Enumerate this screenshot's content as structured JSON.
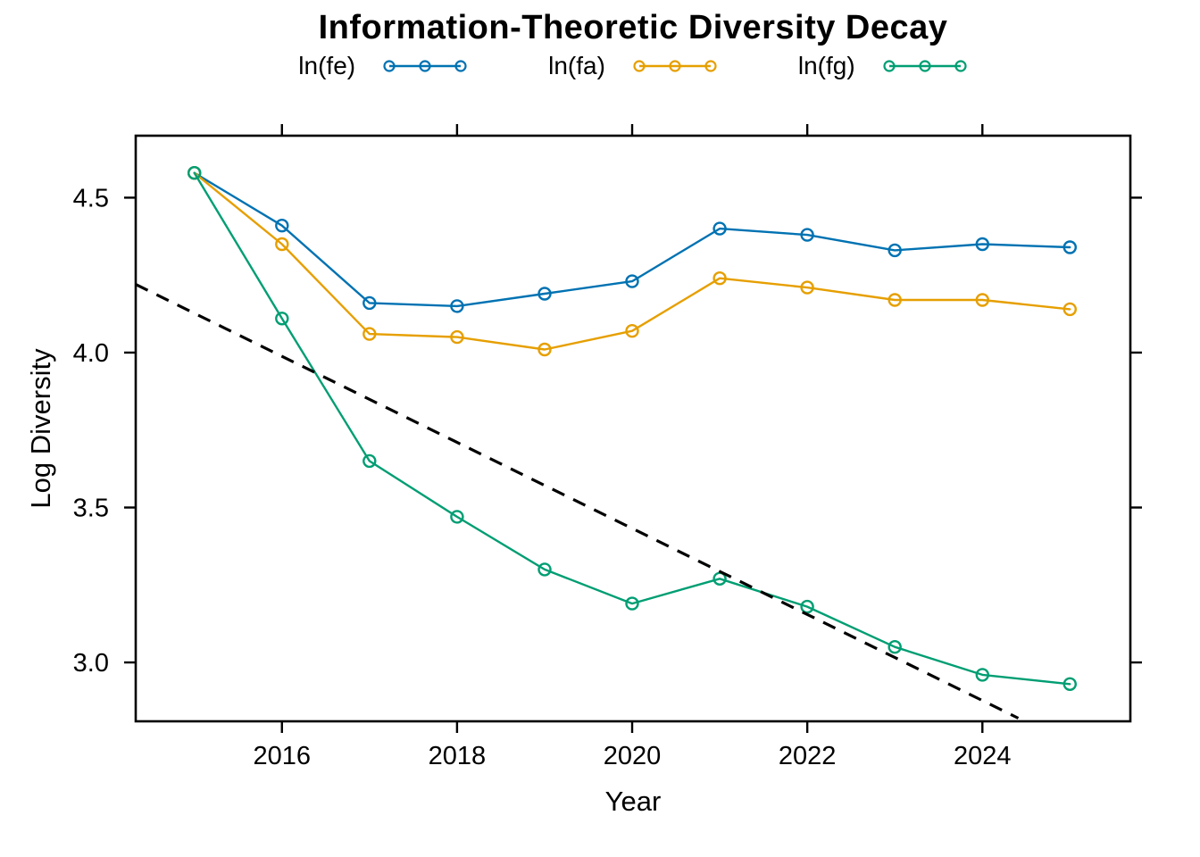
{
  "chart_data": {
    "type": "line",
    "title": "Information-Theoretic Diversity Decay",
    "xlabel": "Year",
    "ylabel": "Log Diversity",
    "x": [
      2015,
      2016,
      2017,
      2018,
      2019,
      2020,
      2021,
      2022,
      2023,
      2024,
      2025
    ],
    "series": [
      {
        "name": "ln(fe)",
        "color": "#0072B2",
        "values": [
          4.58,
          4.41,
          4.16,
          4.15,
          4.19,
          4.23,
          4.4,
          4.38,
          4.33,
          4.35,
          4.34
        ]
      },
      {
        "name": "ln(fa)",
        "color": "#E69F00",
        "values": [
          4.58,
          4.35,
          4.06,
          4.05,
          4.01,
          4.07,
          4.24,
          4.21,
          4.17,
          4.17,
          4.14
        ]
      },
      {
        "name": "ln(fg)",
        "color": "#009E73",
        "values": [
          4.58,
          4.11,
          3.65,
          3.47,
          3.3,
          3.19,
          3.27,
          3.18,
          3.05,
          2.96,
          2.93
        ]
      }
    ],
    "trend_line": {
      "style": "dashed",
      "color": "#000000",
      "x1": 2014.33,
      "y1": 4.22,
      "x2": 2024.41,
      "y2": 2.82
    },
    "x_ticks": [
      {
        "value": 2016,
        "label": "2016"
      },
      {
        "value": 2018,
        "label": "2018"
      },
      {
        "value": 2020,
        "label": "2020"
      },
      {
        "value": 2022,
        "label": "2022"
      },
      {
        "value": 2024,
        "label": "2024"
      }
    ],
    "y_ticks": [
      {
        "value": 3.0,
        "label": "3.0"
      },
      {
        "value": 3.5,
        "label": "3.5"
      },
      {
        "value": 4.0,
        "label": "4.0"
      },
      {
        "value": 4.5,
        "label": "4.5"
      }
    ],
    "x_range": [
      2014.33,
      2025.69
    ],
    "y_range": [
      2.81,
      4.7
    ],
    "grid": false,
    "legend_position": "top-center",
    "marker": "open-circle",
    "frame": "box-with-outward-ticks-all-sides",
    "background_color": "#ffffff",
    "frame_color": "#000000"
  }
}
